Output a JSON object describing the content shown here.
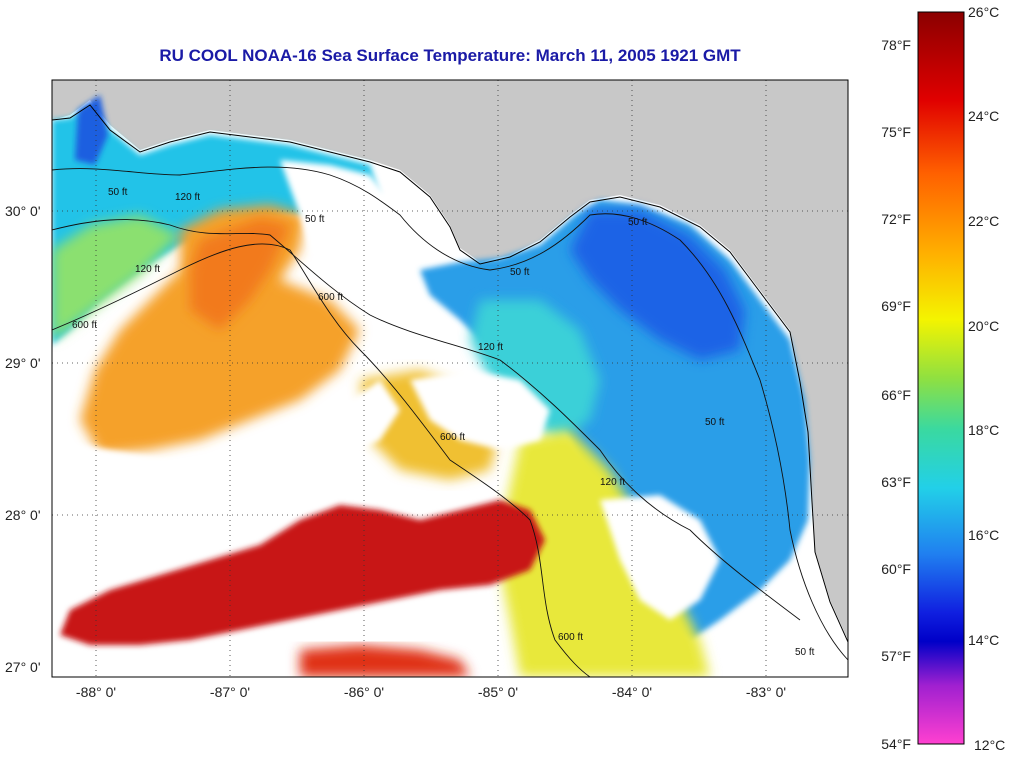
{
  "title": "RU COOL  NOAA-16  Sea Surface Temperature:  March 11, 2005 1921 GMT",
  "map": {
    "lat_ticks": [
      "30° 0'",
      "29° 0'",
      "28° 0'",
      "27° 0'"
    ],
    "lon_ticks": [
      "-88° 0'",
      "-87° 0'",
      "-86° 0'",
      "-85° 0'",
      "-84° 0'",
      "-83° 0'"
    ],
    "contour_labels": [
      "50 ft",
      "120 ft",
      "600 ft",
      "50 ft",
      "120 ft",
      "600 ft",
      "50 ft",
      "50 ft",
      "120 ft",
      "600 ft",
      "120 ft",
      "50 ft",
      "50 ft",
      "600 ft"
    ]
  },
  "colorbar": {
    "fahrenheit_labels": [
      "78°F",
      "75°F",
      "72°F",
      "69°F",
      "66°F",
      "63°F",
      "60°F",
      "57°F",
      "54°F"
    ],
    "celsius_labels": [
      "26°C",
      "24°C",
      "22°C",
      "20°C",
      "18°C",
      "16°C",
      "14°C",
      "12°C"
    ]
  },
  "colors": {
    "land": "#c8c8c8",
    "cloud": "#ffffff",
    "title": "#1a1aa6",
    "cold": "#1e64e6",
    "cool": "#22c3e8",
    "mild": "#e8e83a",
    "warm": "#f5a12a",
    "hot": "#c81414"
  }
}
